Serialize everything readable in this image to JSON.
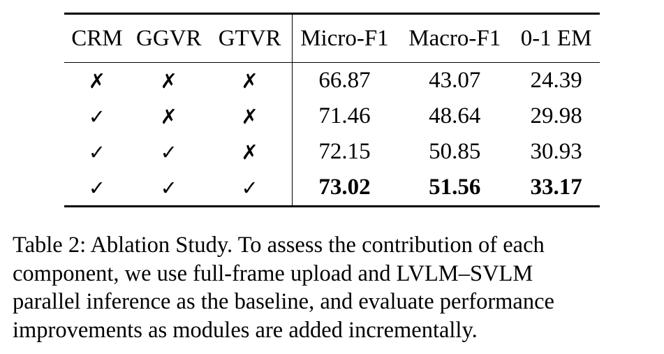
{
  "table": {
    "headers": [
      "CRM",
      "GGVR",
      "GTVR",
      "Micro-F1",
      "Macro-F1",
      "0-1 EM"
    ],
    "rows": [
      {
        "crm": "✗",
        "ggvr": "✗",
        "gtvr": "✗",
        "micro_f1": "66.87",
        "macro_f1": "43.07",
        "em": "24.39"
      },
      {
        "crm": "✓",
        "ggvr": "✗",
        "gtvr": "✗",
        "micro_f1": "71.46",
        "macro_f1": "48.64",
        "em": "29.98"
      },
      {
        "crm": "✓",
        "ggvr": "✓",
        "gtvr": "✗",
        "micro_f1": "72.15",
        "macro_f1": "50.85",
        "em": "30.93"
      },
      {
        "crm": "✓",
        "ggvr": "✓",
        "gtvr": "✓",
        "micro_f1": "73.02",
        "macro_f1": "51.56",
        "em": "33.17"
      }
    ]
  },
  "caption": {
    "lines": [
      "Table 2: Ablation Study. To assess the contribution of each",
      "component, we use full-frame upload and LVLM–SVLM",
      "parallel inference as the baseline, and evaluate performance",
      "improvements as modules are added incrementally."
    ]
  }
}
